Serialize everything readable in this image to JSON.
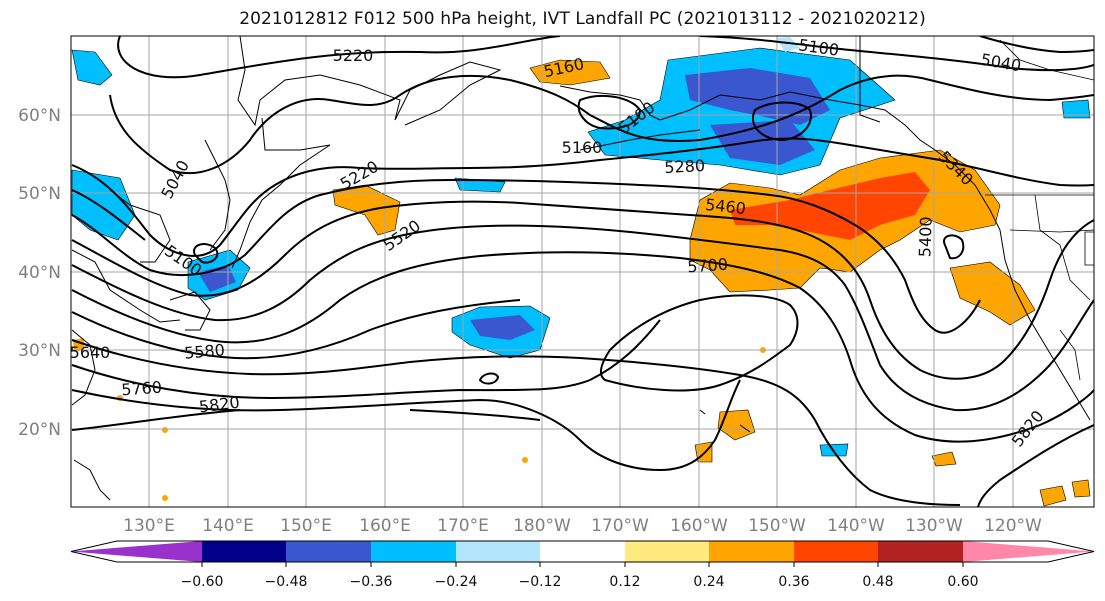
{
  "title": "2021012812 F012 500 hPa height, IVT Landfall PC (2021013112 - 2021020212)",
  "map": {
    "lat_labels": [
      "60°N",
      "50°N",
      "40°N",
      "30°N",
      "20°N"
    ],
    "lon_labels": [
      "130°E",
      "140°E",
      "150°E",
      "160°E",
      "170°E",
      "180°W",
      "170°W",
      "160°W",
      "150°W",
      "140°W",
      "130°W",
      "120°W"
    ],
    "contour_labels": [
      "5220",
      "5160",
      "5100",
      "5040",
      "5040",
      "5160",
      "5100",
      "5280",
      "5220",
      "5460",
      "5520",
      "5700",
      "5400",
      "5340",
      "5100",
      "5580",
      "5760",
      "5820",
      "5820",
      "5640"
    ],
    "fill_colors": {
      "neg_strong": "#3a57cf",
      "neg_mid": "#00bfff",
      "neg_weak": "#b3e5fc",
      "pos_weak": "#ffeb80",
      "pos_mid": "#ffa500",
      "pos_strong": "#ff4500",
      "pos_max": "#b22222"
    }
  },
  "colorbar": {
    "tick_labels": [
      "−0.60",
      "−0.48",
      "−0.36",
      "−0.24",
      "−0.12",
      "0.12",
      "0.24",
      "0.36",
      "0.48",
      "0.60"
    ],
    "colors": [
      "#9932cc",
      "#00008b",
      "#3a57cf",
      "#00bfff",
      "#b3e5fc",
      "#ffffff",
      "#ffeb80",
      "#ffa500",
      "#ff4500",
      "#b22222",
      "#ff88aa"
    ]
  }
}
